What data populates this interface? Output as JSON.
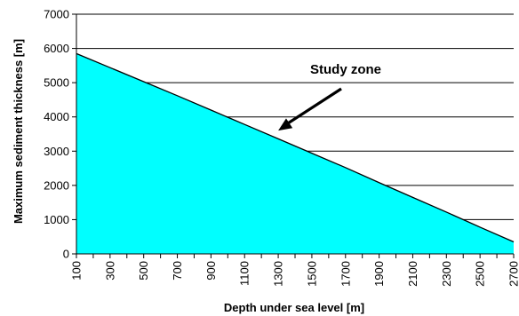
{
  "chart_data": {
    "type": "area",
    "xlabel": "Depth under sea level [m]",
    "ylabel": "Maximum sediment thickness [m]",
    "xlim": [
      100,
      2700
    ],
    "ylim": [
      0,
      7000
    ],
    "x_ticks": [
      100,
      300,
      500,
      700,
      900,
      1100,
      1300,
      1500,
      1700,
      1900,
      2100,
      2300,
      2500,
      2700
    ],
    "y_ticks": [
      0,
      1000,
      2000,
      3000,
      4000,
      5000,
      6000,
      7000
    ],
    "grid": "horizontal",
    "legend": "none",
    "series": [
      {
        "x": [
          100,
          300,
          500,
          700,
          900,
          1100,
          1300,
          1500,
          1700,
          1900,
          2100,
          2300,
          2500,
          2700
        ],
        "values": [
          5850,
          5440,
          5030,
          4620,
          4200,
          3780,
          3360,
          2940,
          2520,
          2080,
          1650,
          1220,
          780,
          350
        ]
      }
    ],
    "fill_color": "#00ffff",
    "line_color": "#000000",
    "annotation": {
      "text": "Study zone",
      "arrow_target": {
        "x": 1300,
        "y": 3600
      }
    }
  }
}
